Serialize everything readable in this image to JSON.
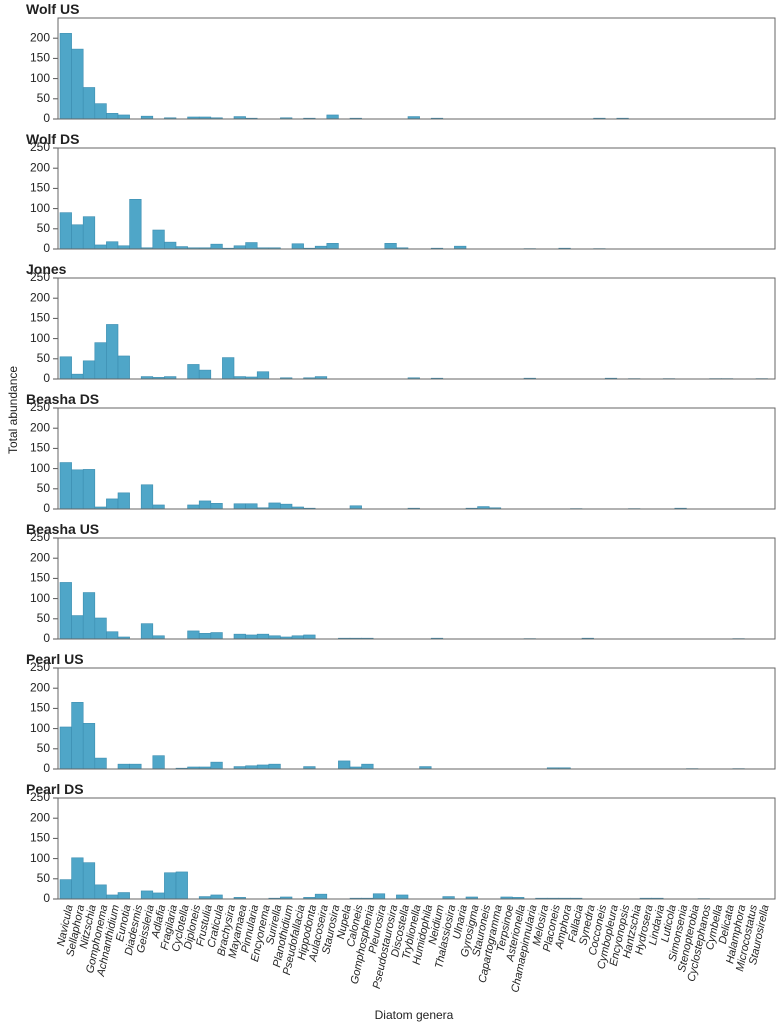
{
  "chart_data": {
    "type": "bar",
    "ylabel": "Total abundance",
    "xlabel": "Diatom genera",
    "ylim": [
      0,
      250
    ],
    "color": "#4fa6c8",
    "categories": [
      "Navicula",
      "Sellaphora",
      "Nitzschia",
      "Gomphonema",
      "Achnanthidium",
      "Eunotia",
      "Diadesmis",
      "Geissleria",
      "Adlafia",
      "Fragilaria",
      "Cyclotella",
      "Diploneis",
      "Frustulia",
      "Craticula",
      "Brachysira",
      "Mayamaea",
      "Pinnularia",
      "Encyonema",
      "Surirella",
      "Planothidium",
      "Pseudofallacia",
      "Hippodonta",
      "Aulacoseira",
      "Staurosira",
      "Nupela",
      "Caloneis",
      "Gomphosphenia",
      "Pleurosira",
      "Pseudostaurosira",
      "Discostella",
      "Tryblionella",
      "Humidophila",
      "Neidium",
      "Thalassiosira",
      "Ulnaria",
      "Gyrosigma",
      "Stauroneis",
      "Capartogramma",
      "Terpsinoe",
      "Asterionella",
      "Chamaepinnularia",
      "Melosira",
      "Placoneis",
      "Amphora",
      "Fallacia",
      "Synedra",
      "Cocconeis",
      "Cymbopleura",
      "Encyonopsis",
      "Hantzschia",
      "Hydrosera",
      "Lindavia",
      "Luticola",
      "Simonsenia",
      "Stenopterobia",
      "Cyclostephanos",
      "Cymbella",
      "Delicata",
      "Halamphora",
      "Microcostatus",
      "Staurosirella"
    ],
    "series": [
      {
        "name": "Wolf US",
        "yticks": [
          0,
          50,
          100,
          150,
          200
        ],
        "values": [
          212,
          173,
          78,
          38,
          14,
          10,
          0,
          7,
          0,
          3,
          0,
          5,
          5,
          3,
          0,
          6,
          2,
          0,
          0,
          3,
          0,
          2,
          0,
          10,
          0,
          2,
          0,
          0,
          0,
          0,
          6,
          0,
          2,
          0,
          0,
          0,
          0,
          0,
          0,
          0,
          0,
          0,
          0,
          0,
          0,
          0,
          2,
          0,
          2,
          0,
          0,
          0,
          0,
          0,
          0,
          0,
          0,
          0,
          0,
          0,
          0
        ]
      },
      {
        "name": "Wolf DS",
        "yticks": [
          0,
          50,
          100,
          150,
          200,
          250
        ],
        "values": [
          90,
          60,
          80,
          10,
          18,
          8,
          123,
          3,
          47,
          17,
          6,
          3,
          3,
          12,
          2,
          8,
          16,
          3,
          3,
          0,
          13,
          2,
          7,
          14,
          0,
          0,
          0,
          0,
          14,
          3,
          0,
          0,
          2,
          0,
          7,
          0,
          0,
          0,
          0,
          0,
          1,
          0,
          0,
          2,
          0,
          0,
          1,
          0,
          0,
          0,
          0,
          0,
          0,
          0,
          0,
          0,
          0,
          0,
          0,
          0,
          0
        ]
      },
      {
        "name": "Jones",
        "yticks": [
          0,
          50,
          100,
          150,
          200,
          250
        ],
        "values": [
          55,
          12,
          45,
          90,
          135,
          57,
          0,
          6,
          4,
          6,
          0,
          36,
          22,
          0,
          53,
          6,
          5,
          18,
          0,
          3,
          0,
          3,
          6,
          0,
          0,
          0,
          0,
          0,
          0,
          0,
          3,
          0,
          2,
          0,
          0,
          0,
          0,
          0,
          0,
          0,
          2,
          0,
          0,
          0,
          0,
          0,
          0,
          2,
          0,
          1,
          0,
          0,
          1,
          0,
          0,
          0,
          1,
          1,
          0,
          0,
          1
        ]
      },
      {
        "name": "Beasha DS",
        "yticks": [
          0,
          50,
          100,
          150,
          200,
          250
        ],
        "values": [
          115,
          97,
          98,
          5,
          25,
          40,
          0,
          60,
          10,
          0,
          0,
          10,
          20,
          14,
          0,
          13,
          13,
          3,
          15,
          12,
          5,
          2,
          0,
          0,
          0,
          8,
          0,
          0,
          0,
          0,
          2,
          0,
          0,
          0,
          0,
          2,
          6,
          3,
          0,
          0,
          0,
          0,
          0,
          0,
          1,
          0,
          0,
          0,
          0,
          1,
          0,
          0,
          0,
          2,
          0,
          0,
          0,
          0,
          0,
          0,
          0
        ]
      },
      {
        "name": "Beasha US",
        "yticks": [
          0,
          50,
          100,
          150,
          200,
          250
        ],
        "values": [
          140,
          58,
          115,
          52,
          18,
          5,
          0,
          38,
          8,
          0,
          0,
          20,
          14,
          16,
          0,
          12,
          10,
          12,
          8,
          5,
          8,
          10,
          0,
          0,
          2,
          2,
          2,
          0,
          0,
          0,
          0,
          0,
          2,
          0,
          0,
          0,
          0,
          0,
          0,
          0,
          1,
          0,
          0,
          0,
          0,
          2,
          0,
          0,
          0,
          0,
          0,
          0,
          0,
          0,
          0,
          0,
          0,
          0,
          1,
          0,
          0
        ]
      },
      {
        "name": "Pearl US",
        "yticks": [
          0,
          50,
          100,
          150,
          200,
          250
        ],
        "values": [
          104,
          165,
          113,
          27,
          0,
          12,
          12,
          0,
          33,
          0,
          2,
          5,
          5,
          17,
          0,
          6,
          8,
          10,
          12,
          0,
          0,
          6,
          0,
          0,
          20,
          5,
          12,
          0,
          0,
          0,
          0,
          6,
          0,
          0,
          0,
          0,
          0,
          0,
          0,
          0,
          0,
          0,
          3,
          3,
          0,
          0,
          0,
          0,
          0,
          0,
          0,
          0,
          0,
          0,
          1,
          0,
          0,
          0,
          1,
          0,
          0
        ]
      },
      {
        "name": "Pearl DS",
        "yticks": [
          0,
          50,
          100,
          150,
          200,
          250
        ],
        "values": [
          48,
          102,
          90,
          35,
          10,
          16,
          0,
          20,
          15,
          65,
          67,
          0,
          6,
          10,
          0,
          4,
          0,
          0,
          2,
          5,
          0,
          4,
          12,
          0,
          0,
          2,
          2,
          13,
          0,
          10,
          0,
          0,
          0,
          6,
          0,
          5,
          0,
          0,
          5,
          4,
          0,
          2,
          2,
          2,
          2,
          0,
          0,
          0,
          0,
          0,
          2,
          2,
          0,
          0,
          0,
          1,
          0,
          0,
          0,
          0,
          0
        ]
      }
    ]
  }
}
